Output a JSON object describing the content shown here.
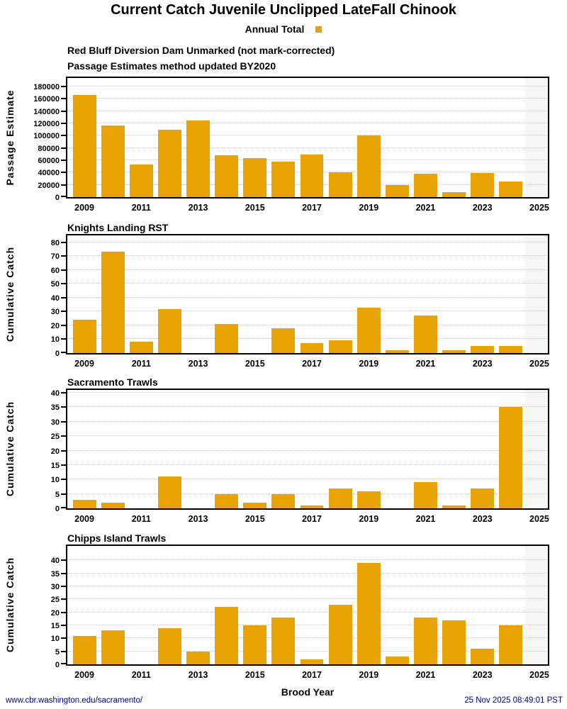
{
  "page": {
    "title": "Current Catch Juvenile Unclipped LateFall Chinook",
    "legend_label": "Annual Total",
    "xlabel": "Brood Year",
    "footer_left": "www.cbr.washington.edu/sacramento/",
    "footer_right": "25 Nov 2025 08:49:01 PST"
  },
  "colors": {
    "bar": "#E8A203",
    "footer_text": "#00008B",
    "future_band": "#f6f6f6",
    "gridline": "#c6c6c6",
    "axis": "#000000"
  },
  "chart_data": [
    {
      "type": "bar",
      "title": "Red Bluff Diversion Dam Unmarked (not mark-corrected)",
      "title2": "Passage Estimates method updated BY2020",
      "ylabel": "Passage Estimate",
      "x": [
        2009,
        2010,
        2011,
        2012,
        2013,
        2014,
        2015,
        2016,
        2017,
        2018,
        2019,
        2020,
        2021,
        2022,
        2023,
        2024
      ],
      "values": [
        166000,
        117000,
        53000,
        110000,
        125000,
        68000,
        64000,
        58000,
        69000,
        41000,
        101000,
        20000,
        38000,
        8000,
        39000,
        26000
      ],
      "yticks": [
        0,
        20000,
        40000,
        60000,
        80000,
        100000,
        120000,
        140000,
        160000,
        180000
      ],
      "ylim": [
        0,
        194000
      ],
      "xlim": [
        2008.4,
        2025.3
      ],
      "xticks": [
        2009,
        2011,
        2013,
        2015,
        2017,
        2019,
        2021,
        2023,
        2025
      ],
      "bar_width": 0.82,
      "shaded_from": 2024.5,
      "grid": true,
      "legend_position": "top"
    },
    {
      "type": "bar",
      "title": "Knights Landing RST",
      "ylabel": "Cumulative Catch",
      "x": [
        2009,
        2010,
        2011,
        2012,
        2013,
        2014,
        2015,
        2016,
        2017,
        2018,
        2019,
        2020,
        2021,
        2022,
        2023,
        2024
      ],
      "values": [
        24,
        73,
        8,
        32,
        0,
        21,
        0,
        18,
        7,
        9,
        33,
        2,
        27,
        2,
        5,
        5
      ],
      "yticks": [
        0,
        10,
        20,
        30,
        40,
        50,
        60,
        70,
        80
      ],
      "ylim": [
        0,
        85
      ],
      "xlim": [
        2008.4,
        2025.3
      ],
      "xticks": [
        2009,
        2011,
        2013,
        2015,
        2017,
        2019,
        2021,
        2023,
        2025
      ],
      "bar_width": 0.82,
      "shaded_from": 2024.5,
      "grid": true
    },
    {
      "type": "bar",
      "title": "Sacramento Trawls",
      "ylabel": "Cumulative Catch",
      "x": [
        2009,
        2010,
        2011,
        2012,
        2013,
        2014,
        2015,
        2016,
        2017,
        2018,
        2019,
        2020,
        2021,
        2022,
        2023,
        2024
      ],
      "values": [
        3,
        2,
        0,
        11,
        0,
        5,
        2,
        5,
        1,
        7,
        6,
        0,
        9,
        1,
        7,
        35
      ],
      "yticks": [
        0,
        5,
        10,
        15,
        20,
        25,
        30,
        35,
        40
      ],
      "ylim": [
        0,
        41
      ],
      "xlim": [
        2008.4,
        2025.3
      ],
      "xticks": [
        2009,
        2011,
        2013,
        2015,
        2017,
        2019,
        2021,
        2023,
        2025
      ],
      "bar_width": 0.82,
      "shaded_from": 2024.5,
      "grid": true
    },
    {
      "type": "bar",
      "title": "Chipps Island Trawls",
      "ylabel": "Cumulative Catch",
      "x": [
        2009,
        2010,
        2011,
        2012,
        2013,
        2014,
        2015,
        2016,
        2017,
        2018,
        2019,
        2020,
        2021,
        2022,
        2023,
        2024
      ],
      "values": [
        11,
        13,
        0,
        14,
        5,
        22,
        15,
        18,
        2,
        23,
        39,
        3,
        18,
        17,
        6,
        15
      ],
      "yticks": [
        0,
        5,
        10,
        15,
        20,
        25,
        30,
        35,
        40
      ],
      "ylim": [
        0,
        45.5
      ],
      "xlim": [
        2008.4,
        2025.3
      ],
      "xticks": [
        2009,
        2011,
        2013,
        2015,
        2017,
        2019,
        2021,
        2023,
        2025
      ],
      "bar_width": 0.82,
      "shaded_from": 2024.5,
      "grid": true
    }
  ]
}
